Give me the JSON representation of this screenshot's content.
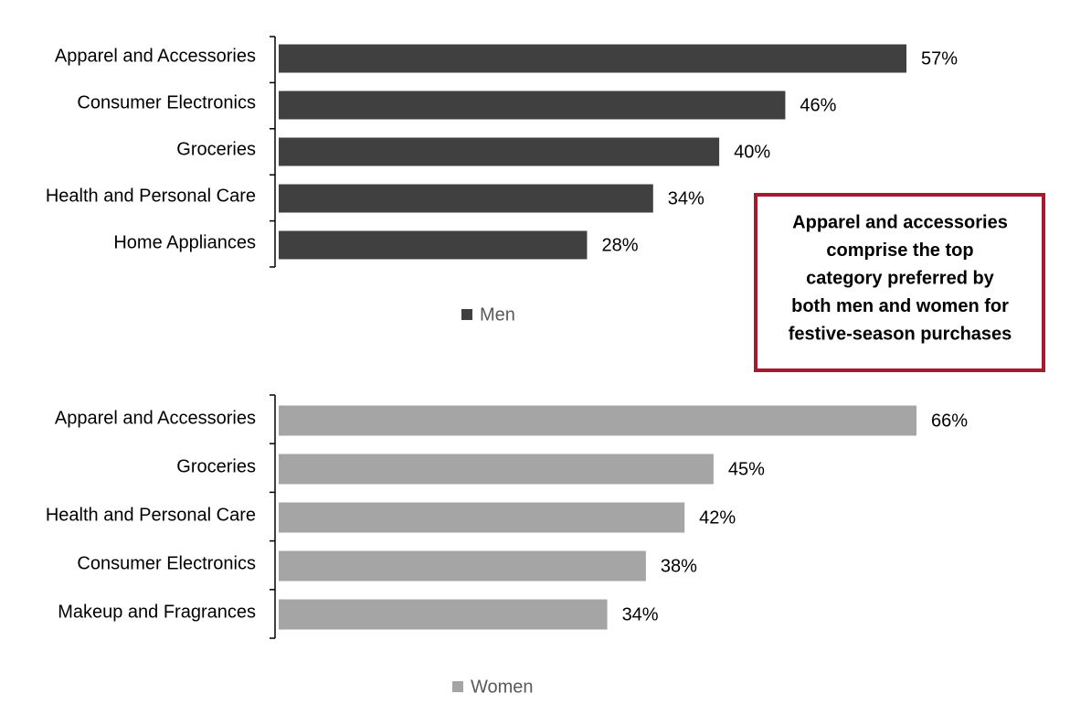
{
  "chart_data": [
    {
      "type": "bar",
      "orientation": "horizontal",
      "categories": [
        "Apparel and Accessories",
        "Consumer Electronics",
        "Groceries",
        "Health and Personal Care",
        "Home Appliances"
      ],
      "series": [
        {
          "name": "Men",
          "color": "#404040",
          "values": [
            57,
            46,
            40,
            34,
            28
          ],
          "value_labels": [
            "57%",
            "46%",
            "40%",
            "34%",
            "28%"
          ]
        }
      ],
      "annotation": [
        "Apparel and accessories",
        "comprise the top",
        "category preferred by",
        "both men and women for",
        "festive-season purchases"
      ]
    },
    {
      "type": "bar",
      "orientation": "horizontal",
      "categories": [
        "Apparel and Accessories",
        "Groceries",
        "Health and Personal Care",
        "Consumer Electronics",
        "Makeup and Fragrances"
      ],
      "series": [
        {
          "name": "Women",
          "color": "#a5a5a5",
          "values": [
            66,
            45,
            42,
            38,
            34
          ],
          "value_labels": [
            "66%",
            "45%",
            "42%",
            "38%",
            "34%"
          ]
        }
      ]
    }
  ]
}
